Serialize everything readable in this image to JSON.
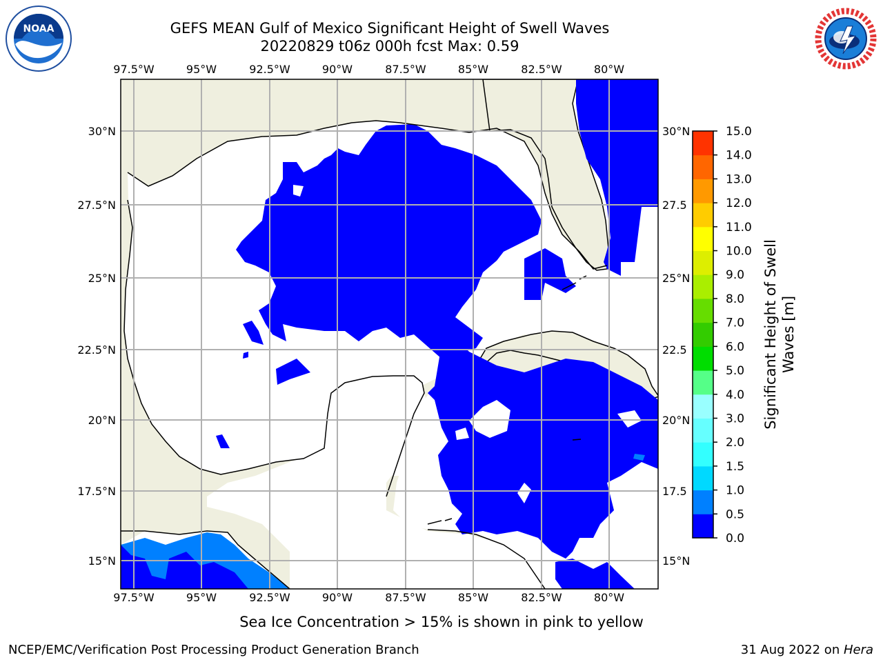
{
  "title": {
    "line1": "GEFS MEAN Gulf of Mexico Significant Height of Swell Waves",
    "line2": "20220829 t06z 000h fcst   Max: 0.59"
  },
  "logos": {
    "left": {
      "icon": "noaa-logo",
      "text": "NOAA",
      "ring_text": "NATIONAL OCEANIC AND ATMOSPHERIC ADMINISTRATION · U.S. DEPARTMENT OF COMMERCE"
    },
    "right": {
      "icon": "nws-logo",
      "ring_text": "NATIONAL WEATHER SERVICE"
    }
  },
  "map": {
    "lon_ticks": [
      "97.5°W",
      "95°W",
      "92.5°W",
      "90°W",
      "87.5°W",
      "85°W",
      "82.5°W",
      "80°W"
    ],
    "lat_ticks_left": [
      "30°N",
      "27.5°N",
      "25°N",
      "22.5°N",
      "20°N",
      "17.5°N",
      "15°N"
    ],
    "lat_ticks_right": [
      "30°N",
      "27.5",
      "25°N",
      "22.5",
      "20°N",
      "17.5",
      "15°N"
    ],
    "lon_range": [
      -98,
      -78
    ],
    "lat_range": [
      14,
      32
    ],
    "grid": true,
    "colors": {
      "land": "#efefdf",
      "ocean_bg": "#ffffff",
      "swell_0": "#0000ff",
      "swell_05": "#0080ff"
    }
  },
  "colorbar": {
    "label": "Significant Height of Swell Waves [m]",
    "label_line1": "Significant Height of Swell",
    "label_line2": "Waves [m]",
    "ticks": [
      "0.0",
      "0.5",
      "1.0",
      "1.5",
      "2.0",
      "3.0",
      "4.0",
      "5.0",
      "6.0",
      "7.0",
      "8.0",
      "9.0",
      "10.0",
      "11.0",
      "12.0",
      "13.0",
      "14.0",
      "15.0"
    ],
    "colors": [
      "#0000ff",
      "#0080ff",
      "#00d9ff",
      "#33ffff",
      "#66ffff",
      "#99ffff",
      "#55ff88",
      "#00dd00",
      "#33cc00",
      "#66dd00",
      "#aaee00",
      "#ddee00",
      "#ffff00",
      "#ffcc00",
      "#ff9900",
      "#ff6600",
      "#ff3300",
      "#ff0000"
    ]
  },
  "footer": {
    "note": "Sea Ice Concentration > 15% is shown in pink to yellow",
    "credit_left": "NCEP/EMC/Verification Post Processing Product Generation Branch",
    "credit_date": "31 Aug 2022 on ",
    "credit_host": "Hera"
  }
}
